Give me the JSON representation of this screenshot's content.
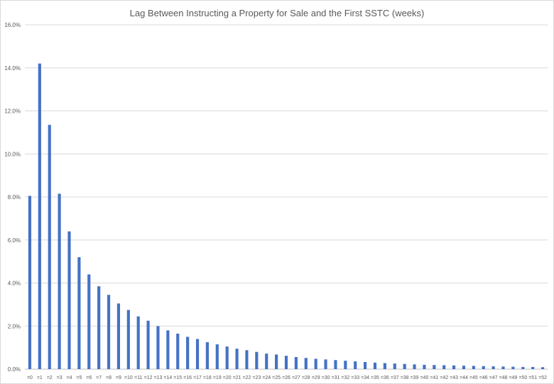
{
  "chart_data": {
    "type": "bar",
    "title": "Lag Between Instructing a Property for Sale and the First SSTC (weeks)",
    "xlabel": "",
    "ylabel": "",
    "ylim": [
      0,
      16
    ],
    "y_ticks": [
      "0.0%",
      "2.0%",
      "4.0%",
      "6.0%",
      "8.0%",
      "10.0%",
      "12.0%",
      "14.0%",
      "16.0%"
    ],
    "grid": true,
    "legend": "none",
    "bar_color": "#4472c4",
    "categories": [
      "=0",
      "=1",
      "=2",
      "=3",
      "=4",
      "=5",
      "=6",
      "=7",
      "=8",
      "=9",
      "=10",
      "=11",
      "=12",
      "=13",
      "=14",
      "=15",
      "=16",
      "=17",
      "=18",
      "=19",
      "=20",
      "=21",
      "=22",
      "=23",
      "=24",
      "=25",
      "=26",
      "=27",
      "=28",
      "=29",
      "=30",
      "=31",
      "=32",
      "=33",
      "=34",
      "=35",
      "=36",
      "=37",
      "=38",
      "=39",
      "=40",
      "=41",
      "=42",
      "=43",
      "=44",
      "=45",
      "=46",
      "=47",
      "=48",
      "=49",
      "=50",
      "=51",
      "=52"
    ],
    "values": [
      8.05,
      14.2,
      11.35,
      8.15,
      6.4,
      5.2,
      4.4,
      3.85,
      3.45,
      3.05,
      2.75,
      2.45,
      2.25,
      2.0,
      1.8,
      1.65,
      1.5,
      1.4,
      1.25,
      1.15,
      1.05,
      0.95,
      0.88,
      0.8,
      0.72,
      0.68,
      0.62,
      0.56,
      0.52,
      0.48,
      0.45,
      0.42,
      0.39,
      0.36,
      0.33,
      0.3,
      0.28,
      0.26,
      0.24,
      0.22,
      0.2,
      0.19,
      0.18,
      0.17,
      0.16,
      0.15,
      0.14,
      0.13,
      0.12,
      0.11,
      0.1,
      0.1,
      0.09
    ]
  }
}
